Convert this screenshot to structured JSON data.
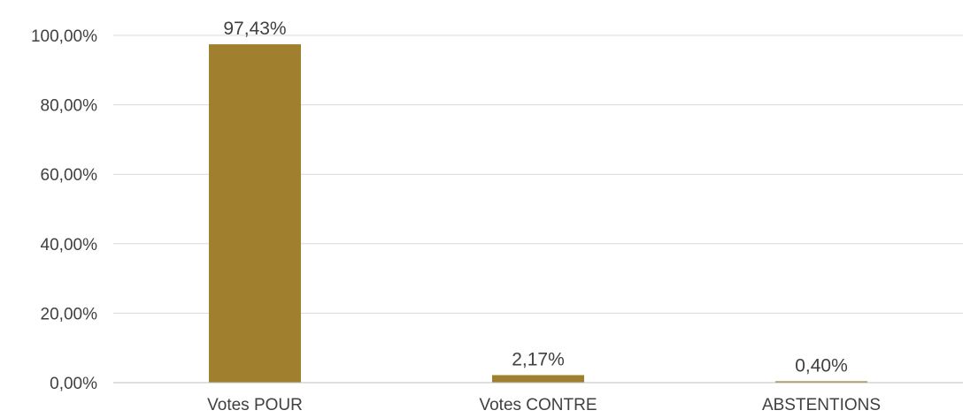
{
  "chart_data": {
    "type": "bar",
    "categories": [
      "Votes POUR",
      "Votes CONTRE",
      "ABSTENTIONS"
    ],
    "values": [
      97.43,
      2.17,
      0.4
    ],
    "data_labels": [
      "97,43%",
      "2,17%",
      "0,40%"
    ],
    "title": "",
    "xlabel": "",
    "ylabel": "",
    "ylim": [
      0,
      100
    ],
    "yticks": [
      0,
      20,
      40,
      60,
      80,
      100
    ],
    "ytick_labels": [
      "0,00%",
      "20,00%",
      "40,00%",
      "60,00%",
      "80,00%",
      "100,00%"
    ],
    "grid": true,
    "legend": "none",
    "colors": {
      "bar": "#A07F2F",
      "grid": "#D9D9D9",
      "axis": "#BFBFBF",
      "text": "#404040"
    }
  }
}
